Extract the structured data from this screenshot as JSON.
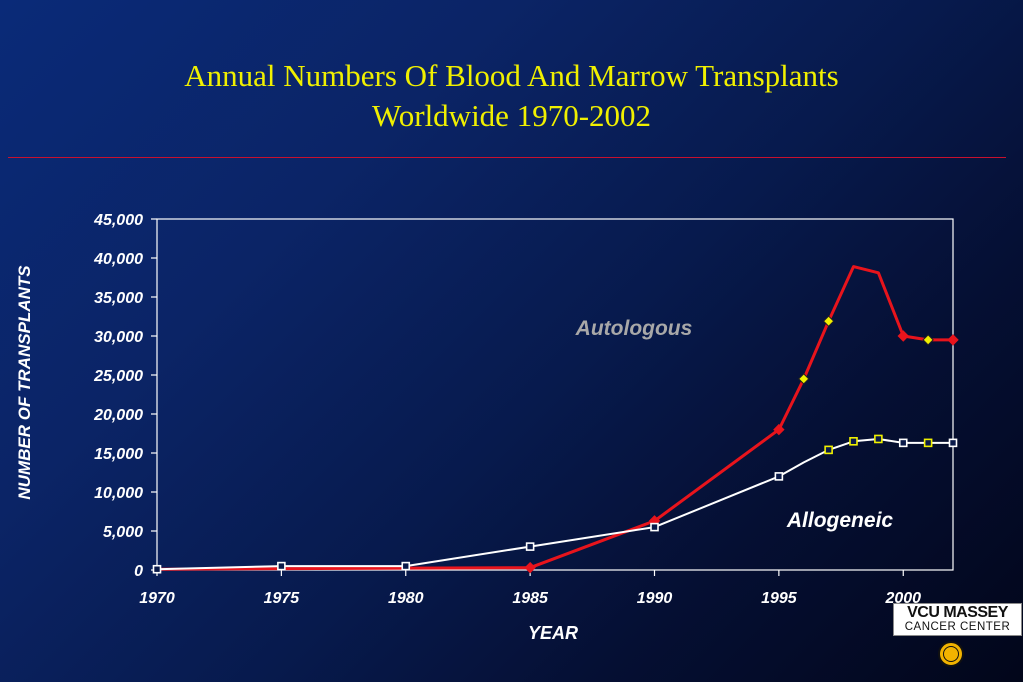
{
  "title": {
    "line1": "Annual Numbers Of Blood And Marrow Transplants",
    "line2": "Worldwide 1970-2002"
  },
  "colors": {
    "title": "#f0f000",
    "rule": "#c8102e",
    "autologous_line": "#e8141c",
    "allogeneic_line": "#ffffff",
    "highlight_marker": "#f0f000",
    "label_autologous": "#a8a8a8"
  },
  "logo": {
    "line1": "VCU MASSEY",
    "line2": "CANCER CENTER",
    "seal_text": "VCU"
  },
  "chart_data": {
    "type": "line",
    "title": "Annual Numbers Of Blood And Marrow Transplants Worldwide 1970-2002",
    "xlabel": "YEAR",
    "ylabel": "NUMBER OF TRANSPLANTS",
    "xlim": [
      1970,
      2002
    ],
    "ylim": [
      0,
      45000
    ],
    "x_ticks": [
      1970,
      1975,
      1980,
      1985,
      1990,
      1995,
      2000
    ],
    "y_ticks": [
      0,
      5000,
      10000,
      15000,
      20000,
      25000,
      30000,
      35000,
      40000,
      45000
    ],
    "y_tick_labels": [
      "0",
      "5,000",
      "10,000",
      "15,000",
      "20,000",
      "25,000",
      "30,000",
      "35,000",
      "40,000",
      "45,000"
    ],
    "grid": false,
    "series": [
      {
        "name": "Autologous",
        "marker": "diamond",
        "points": [
          {
            "x": 1970,
            "y": 100,
            "marker": false
          },
          {
            "x": 1985,
            "y": 300,
            "marker": true,
            "highlight": false
          },
          {
            "x": 1990,
            "y": 6300,
            "marker": true,
            "highlight": false
          },
          {
            "x": 1995,
            "y": 18000,
            "marker": true,
            "highlight": false
          },
          {
            "x": 1996,
            "y": 24500,
            "marker": true,
            "highlight": true
          },
          {
            "x": 1997,
            "y": 31900,
            "marker": true,
            "highlight": true
          },
          {
            "x": 1998,
            "y": 38900,
            "marker": false
          },
          {
            "x": 1999,
            "y": 38100,
            "marker": false
          },
          {
            "x": 2000,
            "y": 30000,
            "marker": true,
            "highlight": false
          },
          {
            "x": 2001,
            "y": 29500,
            "marker": true,
            "highlight": true
          },
          {
            "x": 2002,
            "y": 29500,
            "marker": true,
            "highlight": false
          }
        ]
      },
      {
        "name": "Allogeneic",
        "marker": "square",
        "points": [
          {
            "x": 1970,
            "y": 100,
            "marker": true,
            "highlight": false
          },
          {
            "x": 1975,
            "y": 500,
            "marker": true,
            "highlight": false
          },
          {
            "x": 1980,
            "y": 500,
            "marker": true,
            "highlight": false
          },
          {
            "x": 1985,
            "y": 3000,
            "marker": true,
            "highlight": false
          },
          {
            "x": 1990,
            "y": 5500,
            "marker": true,
            "highlight": false
          },
          {
            "x": 1995,
            "y": 12000,
            "marker": true,
            "highlight": false
          },
          {
            "x": 1996,
            "y": 13800,
            "marker": false
          },
          {
            "x": 1997,
            "y": 15400,
            "marker": true,
            "highlight": true
          },
          {
            "x": 1998,
            "y": 16500,
            "marker": true,
            "highlight": true
          },
          {
            "x": 1999,
            "y": 16800,
            "marker": true,
            "highlight": true
          },
          {
            "x": 2000,
            "y": 16300,
            "marker": true,
            "highlight": false
          },
          {
            "x": 2001,
            "y": 16300,
            "marker": true,
            "highlight": true
          },
          {
            "x": 2002,
            "y": 16300,
            "marker": true,
            "highlight": false
          }
        ]
      }
    ],
    "annotations": [
      {
        "text": "Autologous",
        "series": "Autologous",
        "anchor_x": 1997,
        "anchor_y": 31500
      },
      {
        "text": "Allogeneic",
        "series": "Allogeneic",
        "anchor_x": 1999.5,
        "anchor_y": 6500
      }
    ]
  }
}
